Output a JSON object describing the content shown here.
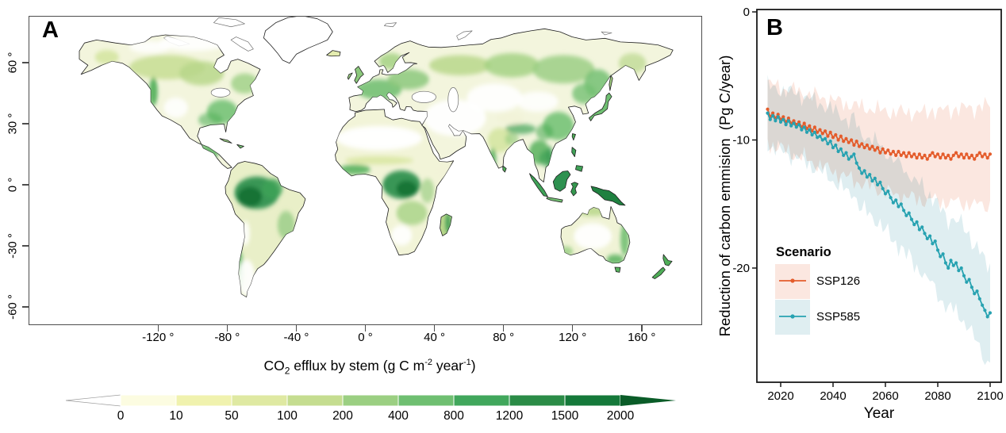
{
  "figure": {
    "background": "#ffffff",
    "panels": [
      {
        "id": "A",
        "label": "A"
      },
      {
        "id": "B",
        "label": "B"
      }
    ]
  },
  "map": {
    "x_ticks": [
      {
        "lon": -120,
        "label": "-120 °"
      },
      {
        "lon": -80,
        "label": "-80 °"
      },
      {
        "lon": -40,
        "label": "-40 °"
      },
      {
        "lon": 0,
        "label": "0 °"
      },
      {
        "lon": 40,
        "label": "40 °"
      },
      {
        "lon": 80,
        "label": "80 °"
      },
      {
        "lon": 120,
        "label": "120 °"
      },
      {
        "lon": 160,
        "label": "160 °"
      }
    ],
    "y_ticks": [
      {
        "lat": 60,
        "label": "60 °"
      },
      {
        "lat": 30,
        "label": "30 °"
      },
      {
        "lat": 0,
        "label": "0 °"
      },
      {
        "lat": -30,
        "label": "-30 °"
      },
      {
        "lat": -60,
        "label": "-60 °"
      }
    ],
    "colorbar": {
      "title_parts": {
        "pre": "CO",
        "sub": "2",
        "mid": " efflux by stem (g C m",
        "sup1": "-2",
        "mid2": " year",
        "sup2": "-1",
        "end": ")"
      },
      "tick_labels": [
        "0",
        "10",
        "50",
        "100",
        "200",
        "400",
        "800",
        "1200",
        "1500",
        "2000"
      ],
      "segment_colors": [
        "#fcfce1",
        "#f0f2ae",
        "#dfe9a2",
        "#c5dd90",
        "#9bcf82",
        "#6fbf71",
        "#41a75c",
        "#2b8c47",
        "#15793a"
      ],
      "under_color": "#ffffff",
      "over_color": "#0a5c28"
    }
  },
  "chart_data": [
    {
      "panel": "A",
      "type": "heatmap",
      "subtype": "global-map-equirectangular",
      "title": "CO2 efflux by stem (g C m-2 year-1)",
      "lon_ticks": [
        -120,
        -80,
        -40,
        0,
        40,
        80,
        120,
        160
      ],
      "lat_ticks": [
        60,
        30,
        0,
        -30,
        -60
      ],
      "scale_breaks": [
        0,
        10,
        50,
        100,
        200,
        400,
        800,
        1200,
        1500,
        2000
      ],
      "scale_unit": "g C m-2 year-1"
    },
    {
      "panel": "B",
      "type": "line",
      "xlabel": "Year",
      "ylabel": "Reduction of carbon emmision  (Pg C/year)",
      "legend_title": "Scenario",
      "x_ticks": [
        2020,
        2040,
        2060,
        2080,
        2100
      ],
      "y_ticks": [
        0,
        -10,
        -20
      ],
      "xlim": [
        2011,
        2104
      ],
      "ylim": [
        -29,
        0.2
      ],
      "start_year": 2015,
      "end_year": 2100,
      "series": [
        {
          "name": "SSP126",
          "line_color": "#e45c2b",
          "band_color": "#fbe7e0",
          "band_halfwidth_start": 2.3,
          "band_halfwidth_end": 3.9,
          "values": [
            -7.6,
            -8.2,
            -7.9,
            -8.3,
            -8.0,
            -8.4,
            -8.2,
            -8.6,
            -8.3,
            -8.7,
            -8.5,
            -8.8,
            -8.6,
            -9.0,
            -8.7,
            -9.1,
            -8.9,
            -9.3,
            -9.0,
            -9.4,
            -9.2,
            -9.5,
            -9.3,
            -9.7,
            -9.4,
            -9.8,
            -9.6,
            -10.0,
            -9.7,
            -10.1,
            -9.9,
            -10.2,
            -10.0,
            -10.4,
            -10.1,
            -10.5,
            -10.3,
            -10.6,
            -10.4,
            -10.7,
            -10.5,
            -10.8,
            -10.6,
            -11.0,
            -10.7,
            -11.0,
            -10.8,
            -11.1,
            -10.9,
            -11.2,
            -10.9,
            -11.2,
            -11.0,
            -11.3,
            -11.0,
            -11.3,
            -11.1,
            -11.4,
            -11.1,
            -11.4,
            -11.2,
            -11.5,
            -11.2,
            -11.0,
            -11.3,
            -11.1,
            -11.4,
            -11.1,
            -11.4,
            -11.2,
            -11.5,
            -11.2,
            -11.0,
            -11.3,
            -11.1,
            -11.4,
            -11.1,
            -11.4,
            -11.2,
            -11.5,
            -11.2,
            -11.0,
            -11.3,
            -11.1,
            -11.4,
            -11.1
          ]
        },
        {
          "name": "SSP585",
          "line_color": "#27a2b1",
          "band_color": "#dfeef1",
          "band_halfwidth_start": 2.3,
          "band_halfwidth_end": 3.8,
          "values": [
            -7.9,
            -8.4,
            -8.1,
            -8.5,
            -8.2,
            -8.6,
            -8.4,
            -8.8,
            -8.5,
            -8.9,
            -8.7,
            -9.0,
            -8.8,
            -9.2,
            -9.0,
            -9.4,
            -9.2,
            -9.6,
            -9.4,
            -9.8,
            -9.7,
            -10.0,
            -9.9,
            -10.3,
            -10.1,
            -10.6,
            -10.4,
            -10.9,
            -10.7,
            -11.2,
            -11.0,
            -11.5,
            -11.3,
            -11.1,
            -11.8,
            -12.2,
            -12.6,
            -12.4,
            -12.9,
            -12.7,
            -13.2,
            -13.0,
            -13.5,
            -13.3,
            -13.8,
            -14.2,
            -14.0,
            -14.5,
            -14.9,
            -14.7,
            -15.2,
            -15.0,
            -15.5,
            -15.9,
            -15.7,
            -16.2,
            -16.6,
            -16.4,
            -17.0,
            -16.8,
            -17.3,
            -17.7,
            -17.5,
            -18.1,
            -17.9,
            -18.6,
            -19.1,
            -18.9,
            -19.6,
            -20.0,
            -19.4,
            -19.8,
            -19.6,
            -20.2,
            -20.0,
            -20.6,
            -21.1,
            -20.9,
            -21.5,
            -22.0,
            -21.8,
            -22.4,
            -22.9,
            -23.3,
            -23.8,
            -23.5
          ]
        }
      ]
    }
  ]
}
